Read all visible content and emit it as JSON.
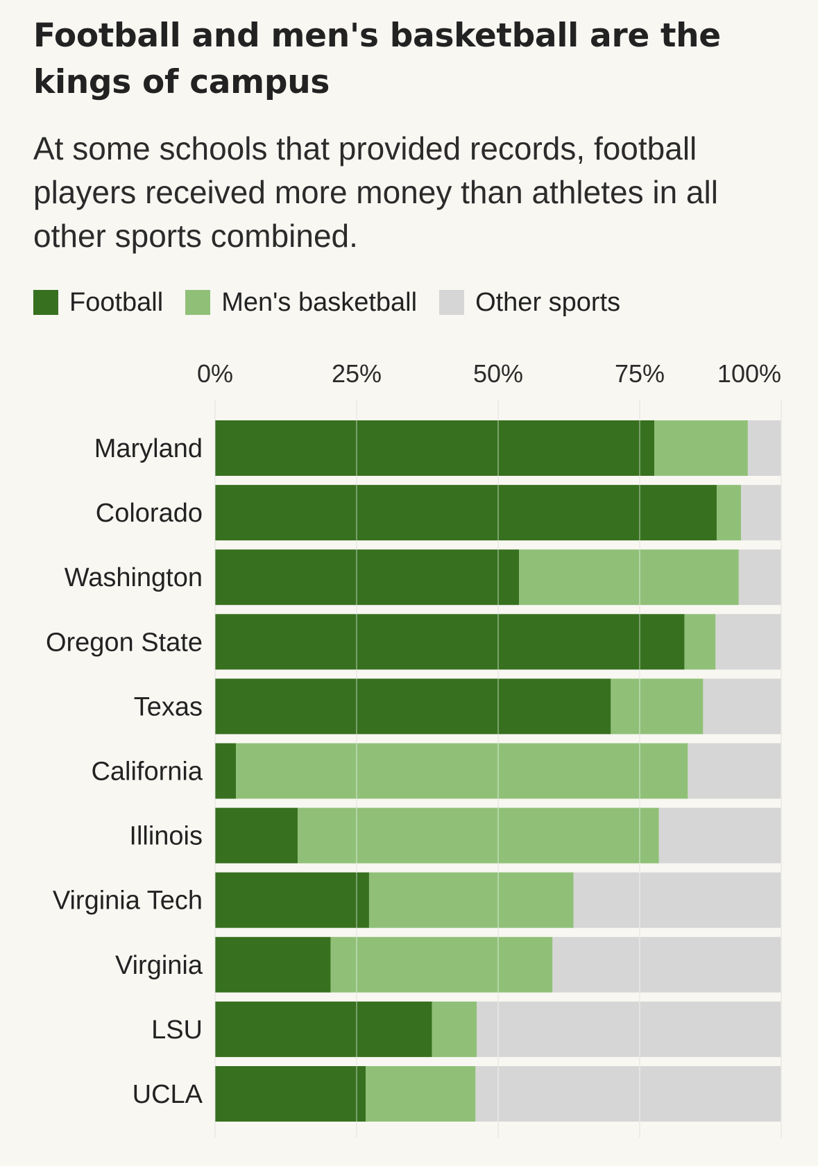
{
  "title": "Football and men's basketball are the kings of campus",
  "subtitle": "At some schools that provided records, football players received more money than athletes in all other sports combined.",
  "legend": [
    {
      "label": "Football",
      "color": "#37711f"
    },
    {
      "label": "Men's basketball",
      "color": "#90c078"
    },
    {
      "label": "Other sports",
      "color": "#d6d6d6"
    }
  ],
  "chart_data": {
    "type": "bar",
    "orientation": "horizontal",
    "stacked": true,
    "title": "Football and men's basketball are the kings of campus",
    "subtitle": "At some schools that provided records, football players received more money than athletes in all other sports combined.",
    "xlabel": "",
    "ylabel": "",
    "xlim": [
      0,
      100
    ],
    "x_ticks": [
      "0%",
      "25%",
      "50%",
      "75%",
      "100%"
    ],
    "x_tick_values": [
      0,
      25,
      50,
      75,
      100
    ],
    "grid": true,
    "legend_position": "top-left",
    "categories": [
      "Maryland",
      "Colorado",
      "Washington",
      "Oregon State",
      "Texas",
      "California",
      "Illinois",
      "Virginia Tech",
      "Virginia",
      "LSU",
      "UCLA"
    ],
    "series": [
      {
        "name": "Football",
        "color": "#37711f",
        "values": [
          77.6,
          88.6,
          53.7,
          82.9,
          69.9,
          3.7,
          14.6,
          27.2,
          20.4,
          38.3,
          26.6
        ]
      },
      {
        "name": "Men's basketball",
        "color": "#90c078",
        "values": [
          16.5,
          4.3,
          38.8,
          5.5,
          16.3,
          79.8,
          63.8,
          36.1,
          39.2,
          7.9,
          19.4
        ]
      },
      {
        "name": "Other sports",
        "color": "#d6d6d6",
        "values": [
          5.9,
          7.1,
          7.5,
          11.6,
          13.8,
          16.5,
          21.6,
          36.7,
          40.4,
          53.8,
          54.0
        ]
      }
    ]
  }
}
